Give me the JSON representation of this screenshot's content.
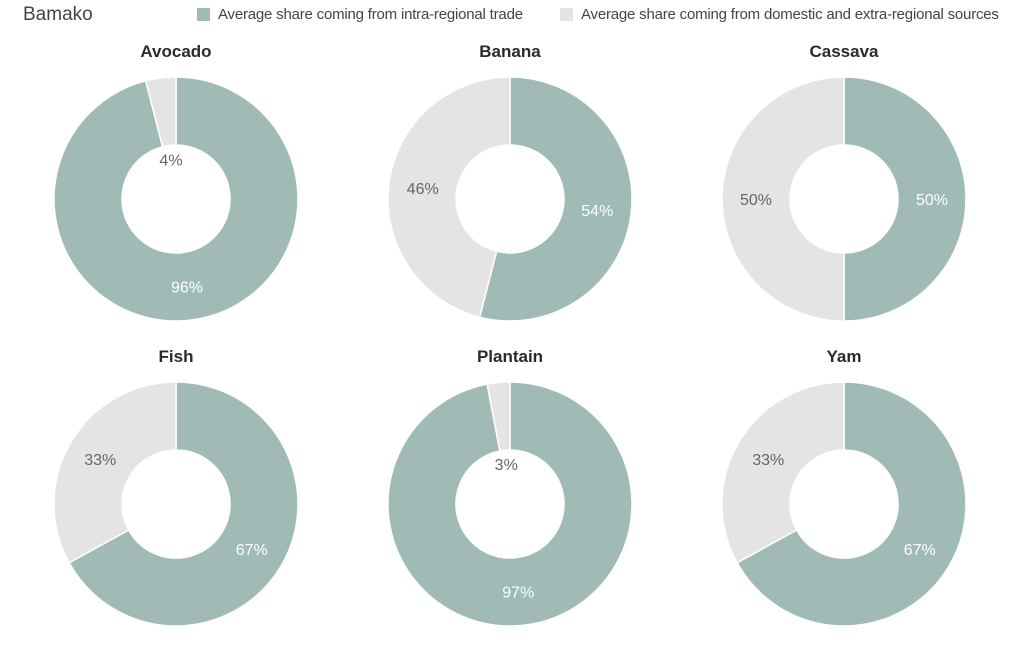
{
  "header": {
    "city": "Bamako",
    "legend": [
      {
        "label": "Average share coming from intra-regional trade",
        "color": "#a0bab6"
      },
      {
        "label": "Average share coming from domestic and extra-regional sources",
        "color": "#e4e4e4"
      }
    ]
  },
  "colors": {
    "intra": "#a0bab6",
    "other": "#e4e4e4",
    "label_on_intra": "#ffffff",
    "label_on_other": "#666666"
  },
  "charts": [
    {
      "title": "Avocado",
      "intra": 96,
      "other": 4,
      "intra_label": "96%",
      "other_label": "4%"
    },
    {
      "title": "Banana",
      "intra": 54,
      "other": 46,
      "intra_label": "54%",
      "other_label": "46%"
    },
    {
      "title": "Cassava",
      "intra": 50,
      "other": 50,
      "intra_label": "50%",
      "other_label": "50%"
    },
    {
      "title": "Fish",
      "intra": 67,
      "other": 33,
      "intra_label": "67%",
      "other_label": "33%"
    },
    {
      "title": "Plantain",
      "intra": 97,
      "other": 3,
      "intra_label": "97%",
      "other_label": "3%"
    },
    {
      "title": "Yam",
      "intra": 67,
      "other": 33,
      "intra_label": "67%",
      "other_label": "33%"
    }
  ],
  "chart_data": {
    "type": "pie",
    "title": "Bamako",
    "variant": "donut",
    "categories": [
      "Avocado",
      "Banana",
      "Cassava",
      "Fish",
      "Plantain",
      "Yam"
    ],
    "series": [
      {
        "name": "Average share coming from intra-regional trade",
        "values": [
          96,
          54,
          50,
          67,
          97,
          67
        ],
        "color": "#a0bab6"
      },
      {
        "name": "Average share coming from domestic and extra-regional sources",
        "values": [
          4,
          46,
          50,
          33,
          3,
          33
        ],
        "color": "#e4e4e4"
      }
    ],
    "unit": "%",
    "legend_position": "top",
    "layout": "2 rows x 3 columns of donut charts"
  }
}
